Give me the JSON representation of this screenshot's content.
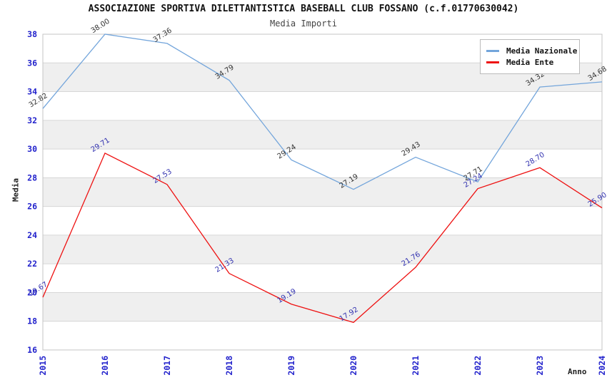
{
  "title": "ASSOCIAZIONE SPORTIVA DILETTANTISTICA BASEBALL CLUB FOSSANO (c.f.01770630042)",
  "subtitle": "Media Importi",
  "chart_data": {
    "type": "line",
    "x": [
      2015,
      2016,
      2017,
      2018,
      2019,
      2020,
      2021,
      2022,
      2023,
      2024
    ],
    "series": [
      {
        "name": "Media Nazionale",
        "color": "#73A5DB",
        "label_color": "#333333",
        "values": [
          32.82,
          38.0,
          37.36,
          34.79,
          29.24,
          27.19,
          29.43,
          27.71,
          34.32,
          34.68
        ]
      },
      {
        "name": "Media Ente",
        "color": "#EE1111",
        "label_color": "#3232B0",
        "values": [
          19.67,
          29.71,
          27.53,
          21.33,
          19.19,
          17.92,
          21.76,
          27.24,
          28.7,
          25.9
        ]
      }
    ],
    "xlabel": "Anno",
    "ylabel": "Media",
    "ylim": [
      16,
      38
    ],
    "ytick_step": 2,
    "grid": true,
    "legend_position": "top-right",
    "plot_bands": [
      "#FFFFFF",
      "#EFEFEF"
    ],
    "grid_color": "#D6D6D6",
    "border_color": "#C4C4C4",
    "tick_color": "#2222CC",
    "label_decimals": 2
  }
}
